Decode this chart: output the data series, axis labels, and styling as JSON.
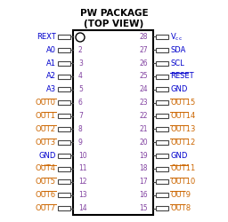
{
  "title_line1": "PW PACKAGE",
  "title_line2": "(TOP VIEW)",
  "background_color": "#ffffff",
  "title_color": "#000000",
  "box_color": "#000000",
  "num_color": "#8040a0",
  "left_pins": [
    {
      "num": 1,
      "label": "REXT",
      "overline": false,
      "color_label": "#0000cc"
    },
    {
      "num": 2,
      "label": "A0",
      "overline": false,
      "color_label": "#0000cc"
    },
    {
      "num": 3,
      "label": "A1",
      "overline": false,
      "color_label": "#0000cc"
    },
    {
      "num": 4,
      "label": "A2",
      "overline": false,
      "color_label": "#0000cc"
    },
    {
      "num": 5,
      "label": "A3",
      "overline": false,
      "color_label": "#0000cc"
    },
    {
      "num": 6,
      "label": "OUT0",
      "overline": true,
      "color_label": "#cc6600"
    },
    {
      "num": 7,
      "label": "OUT1",
      "overline": true,
      "color_label": "#cc6600"
    },
    {
      "num": 8,
      "label": "OUT2",
      "overline": true,
      "color_label": "#cc6600"
    },
    {
      "num": 9,
      "label": "OUT3",
      "overline": true,
      "color_label": "#cc6600"
    },
    {
      "num": 10,
      "label": "GND",
      "overline": false,
      "color_label": "#0000cc"
    },
    {
      "num": 11,
      "label": "OUT4",
      "overline": true,
      "color_label": "#cc6600"
    },
    {
      "num": 12,
      "label": "OUT5",
      "overline": true,
      "color_label": "#cc6600"
    },
    {
      "num": 13,
      "label": "OUT6",
      "overline": true,
      "color_label": "#cc6600"
    },
    {
      "num": 14,
      "label": "OUT7",
      "overline": true,
      "color_label": "#cc6600"
    }
  ],
  "right_pins": [
    {
      "num": 28,
      "label": "Vcc",
      "overline": false,
      "color_label": "#0000cc",
      "vcc": true
    },
    {
      "num": 27,
      "label": "SDA",
      "overline": false,
      "color_label": "#0000cc"
    },
    {
      "num": 26,
      "label": "SCL",
      "overline": false,
      "color_label": "#0000cc"
    },
    {
      "num": 25,
      "label": "RESET",
      "overline": true,
      "color_label": "#0000cc"
    },
    {
      "num": 24,
      "label": "GND",
      "overline": false,
      "color_label": "#0000cc"
    },
    {
      "num": 23,
      "label": "OUT15",
      "overline": true,
      "color_label": "#cc6600"
    },
    {
      "num": 22,
      "label": "OUT14",
      "overline": true,
      "color_label": "#cc6600"
    },
    {
      "num": 21,
      "label": "OUT13",
      "overline": true,
      "color_label": "#cc6600"
    },
    {
      "num": 20,
      "label": "OUT12",
      "overline": true,
      "color_label": "#cc6600"
    },
    {
      "num": 19,
      "label": "GND",
      "overline": false,
      "color_label": "#0000cc"
    },
    {
      "num": 18,
      "label": "OUT11",
      "overline": true,
      "color_label": "#cc6600"
    },
    {
      "num": 17,
      "label": "OUT10",
      "overline": true,
      "color_label": "#cc6600"
    },
    {
      "num": 16,
      "label": "OUT9",
      "overline": true,
      "color_label": "#cc6600"
    },
    {
      "num": 15,
      "label": "OUT8",
      "overline": true,
      "color_label": "#cc6600"
    }
  ]
}
